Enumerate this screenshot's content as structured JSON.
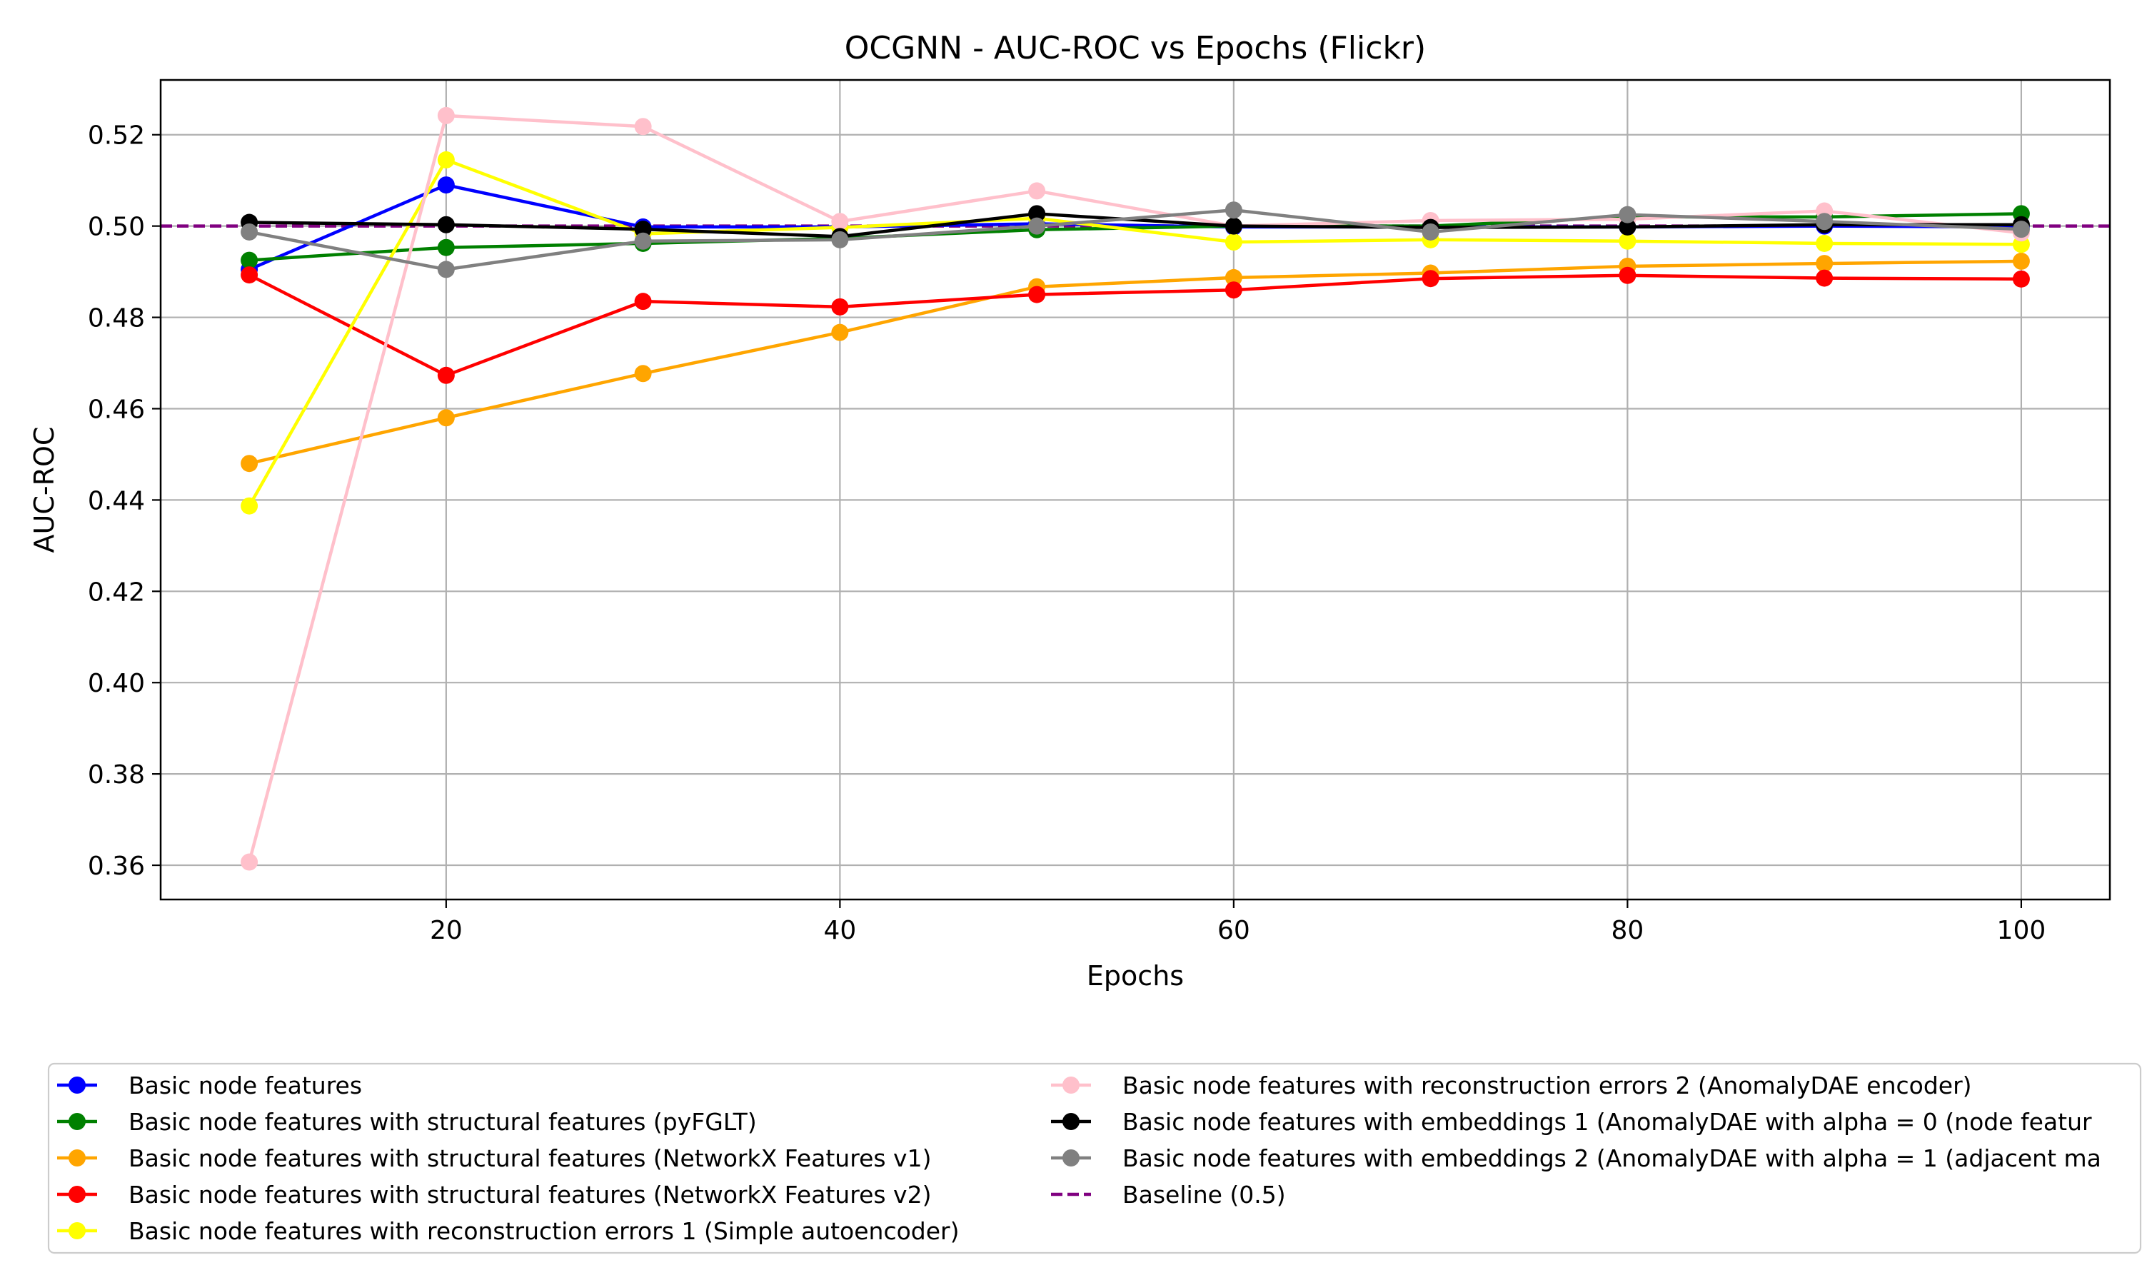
{
  "chart_data": {
    "type": "line",
    "title": "OCGNN - AUC-ROC vs Epochs (Flickr)",
    "xlabel": "Epochs",
    "ylabel": "AUC-ROC",
    "x": [
      10,
      20,
      30,
      40,
      50,
      60,
      70,
      80,
      90,
      100
    ],
    "xlim": [
      5.5,
      104.5
    ],
    "ylim": [
      0.3525,
      0.532
    ],
    "xticks": [
      20,
      40,
      60,
      80,
      100
    ],
    "xtick_labels": [
      "20",
      "40",
      "60",
      "80",
      "100"
    ],
    "yticks": [
      0.36,
      0.38,
      0.4,
      0.42,
      0.44,
      0.46,
      0.48,
      0.5,
      0.52
    ],
    "ytick_labels": [
      "0.36",
      "0.38",
      "0.40",
      "0.42",
      "0.44",
      "0.46",
      "0.48",
      "0.50",
      "0.52"
    ],
    "grid": true,
    "legend_position": "bottom (below chart, two columns)",
    "series": [
      {
        "name": "Basic node features",
        "color": "#0000ff",
        "values": [
          0.4905,
          0.509,
          0.4998,
          0.4998,
          0.5005,
          0.4998,
          0.4998,
          0.4998,
          0.5,
          0.4998
        ]
      },
      {
        "name": "Basic node features with structural features (pyFGLT)",
        "color": "#008000",
        "values": [
          0.4925,
          0.4953,
          0.4962,
          0.4973,
          0.4992,
          0.5,
          0.5,
          0.502,
          0.502,
          0.5027
        ]
      },
      {
        "name": "Basic node features with structural features (NetworkX Features v1)",
        "color": "#ffa500",
        "values": [
          0.448,
          0.458,
          0.4677,
          0.4767,
          0.4867,
          0.4887,
          0.4897,
          0.4912,
          0.4918,
          0.4923
        ]
      },
      {
        "name": "Basic node features with structural features (NetworkX Features v2)",
        "color": "#ff0000",
        "values": [
          0.4893,
          0.4673,
          0.4835,
          0.4823,
          0.485,
          0.486,
          0.4885,
          0.4892,
          0.4886,
          0.4884
        ]
      },
      {
        "name": "Basic node features with reconstruction errors 1 (Simple autoencoder)",
        "color": "#ffff00",
        "values": [
          0.4387,
          0.5145,
          0.4983,
          0.4997,
          0.5017,
          0.4965,
          0.497,
          0.4967,
          0.4962,
          0.496
        ]
      },
      {
        "name": "Basic node features with reconstruction errors 2 (AnomalyDAE encoder)",
        "color": "#ffc0cb",
        "values": [
          0.3607,
          0.5242,
          0.5218,
          0.501,
          0.5077,
          0.5,
          0.5012,
          0.5015,
          0.5033,
          0.4985
        ]
      },
      {
        "name": "Basic node features with embeddings 1 (AnomalyDAE with alpha = 0 (node featur",
        "color": "#000000",
        "values": [
          0.5008,
          0.5003,
          0.4993,
          0.4977,
          0.5027,
          0.5,
          0.4997,
          0.4998,
          0.5003,
          0.5003
        ]
      },
      {
        "name": "Basic node features with embeddings 2 (AnomalyDAE with alpha = 1 (adjacent ma",
        "color": "#808080",
        "values": [
          0.4987,
          0.4905,
          0.4967,
          0.497,
          0.5,
          0.5035,
          0.4987,
          0.5025,
          0.501,
          0.4993
        ]
      }
    ],
    "baseline": {
      "name": "Baseline (0.5)",
      "value": 0.5,
      "color": "#800080"
    },
    "legend_order": [
      0,
      1,
      2,
      3,
      4,
      5,
      6,
      7,
      "baseline"
    ]
  }
}
